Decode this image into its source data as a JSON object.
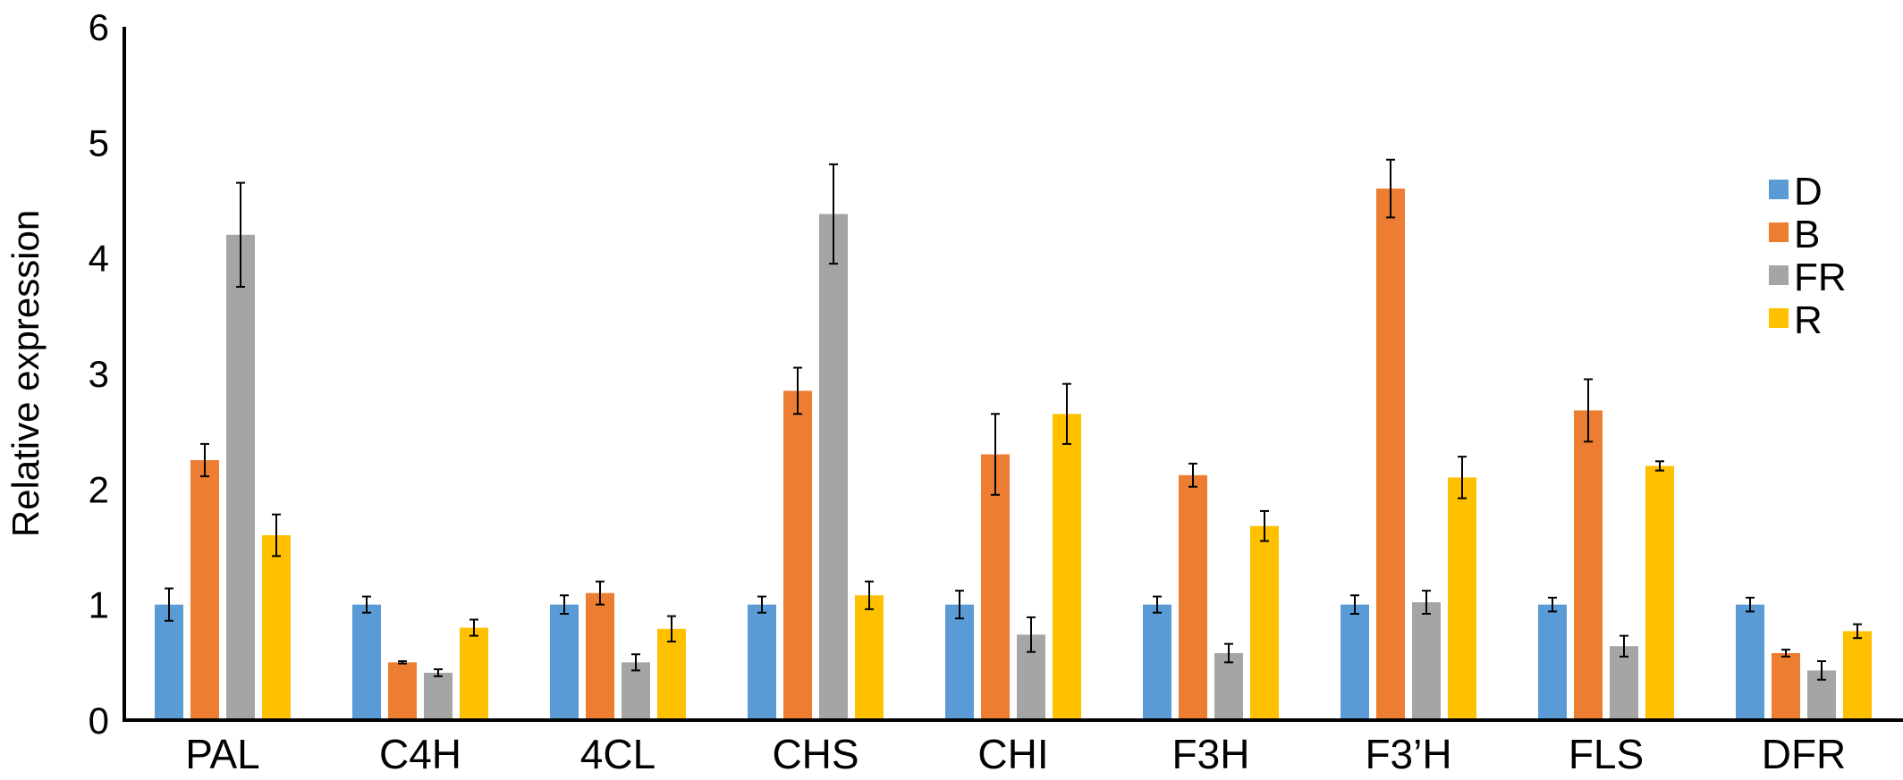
{
  "chart_data": {
    "type": "bar",
    "title": "",
    "xlabel": "",
    "ylabel": "Relative expression",
    "ylim": [
      0,
      6
    ],
    "yticks": [
      0,
      1,
      2,
      3,
      4,
      5,
      6
    ],
    "grid": false,
    "legend_position": "right",
    "categories": [
      "PAL",
      "C4H",
      "4CL",
      "CHS",
      "CHI",
      "F3H",
      "F3’H",
      "FLS",
      "DFR"
    ],
    "series": [
      {
        "name": "D",
        "color": "#5B9BD5",
        "values": [
          1.0,
          1.0,
          1.0,
          1.0,
          1.0,
          1.0,
          1.0,
          1.0,
          1.0
        ],
        "errors": [
          0.14,
          0.07,
          0.08,
          0.07,
          0.12,
          0.07,
          0.08,
          0.06,
          0.06
        ]
      },
      {
        "name": "B",
        "color": "#ED7D31",
        "values": [
          2.25,
          0.5,
          1.1,
          2.85,
          2.3,
          2.12,
          4.6,
          2.68,
          0.58
        ],
        "errors": [
          0.14,
          0.01,
          0.1,
          0.2,
          0.35,
          0.1,
          0.25,
          0.27,
          0.03
        ]
      },
      {
        "name": "FR",
        "color": "#A5A5A5",
        "values": [
          4.2,
          0.41,
          0.5,
          4.38,
          0.74,
          0.58,
          1.02,
          0.64,
          0.43
        ],
        "errors": [
          0.45,
          0.03,
          0.07,
          0.43,
          0.15,
          0.08,
          0.1,
          0.09,
          0.08
        ]
      },
      {
        "name": "R",
        "color": "#FFC000",
        "values": [
          1.6,
          0.8,
          0.79,
          1.08,
          2.65,
          1.68,
          2.1,
          2.2,
          0.77
        ],
        "errors": [
          0.18,
          0.07,
          0.11,
          0.12,
          0.26,
          0.13,
          0.18,
          0.04,
          0.06
        ]
      }
    ]
  }
}
